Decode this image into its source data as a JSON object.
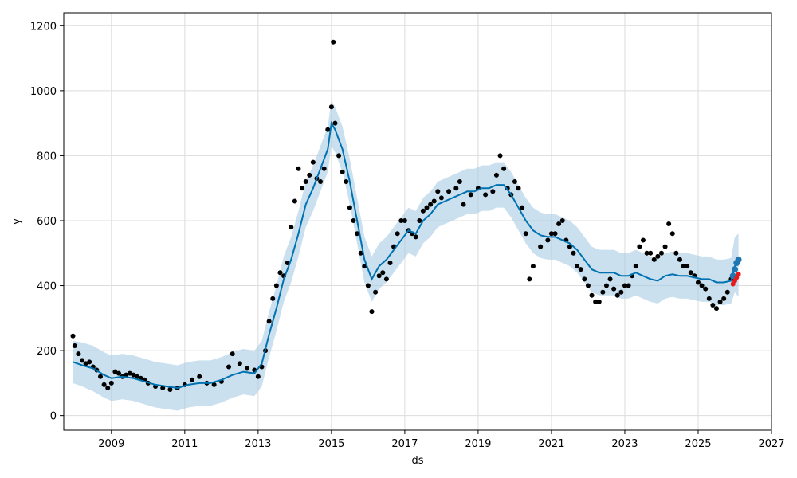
{
  "chart_data": {
    "type": "line",
    "title": "",
    "xlabel": "ds",
    "ylabel": "y",
    "xlim": [
      2007.7,
      2027.0
    ],
    "ylim": [
      -45,
      1240
    ],
    "x_ticks": [
      2009,
      2011,
      2013,
      2015,
      2017,
      2019,
      2021,
      2023,
      2025,
      2027
    ],
    "x_tick_labels": [
      "2009",
      "2011",
      "2013",
      "2015",
      "2017",
      "2019",
      "2021",
      "2023",
      "2025",
      "2027"
    ],
    "y_ticks": [
      0,
      200,
      400,
      600,
      800,
      1000,
      1200
    ],
    "y_tick_labels": [
      "0",
      "200",
      "400",
      "600",
      "800",
      "1000",
      "1200"
    ],
    "grid": true,
    "colors": {
      "observed": "#000000",
      "forecast_line": "#0072B2",
      "uncertainty_band": "#a6cbe3",
      "future_points": "#1f77b4",
      "future_actual": "#e41a1c"
    },
    "series": [
      {
        "name": "",
        "kind": "observed-points",
        "x": [
          2007.95,
          2008.0,
          2008.1,
          2008.2,
          2008.3,
          2008.4,
          2008.5,
          2008.6,
          2008.7,
          2008.8,
          2008.9,
          2009.0,
          2009.1,
          2009.2,
          2009.3,
          2009.4,
          2009.5,
          2009.6,
          2009.7,
          2009.8,
          2009.9,
          2010.0,
          2010.2,
          2010.4,
          2010.6,
          2010.8,
          2011.0,
          2011.2,
          2011.4,
          2011.6,
          2011.8,
          2012.0,
          2012.2,
          2012.3,
          2012.5,
          2012.7,
          2012.9,
          2013.0,
          2013.1,
          2013.2,
          2013.3,
          2013.4,
          2013.5,
          2013.6,
          2013.7,
          2013.8,
          2013.9,
          2014.0,
          2014.1,
          2014.2,
          2014.3,
          2014.4,
          2014.5,
          2014.6,
          2014.7,
          2014.8,
          2014.9,
          2015.0,
          2015.05,
          2015.1,
          2015.2,
          2015.3,
          2015.4,
          2015.5,
          2015.6,
          2015.7,
          2015.8,
          2015.9,
          2016.0,
          2016.1,
          2016.2,
          2016.3,
          2016.4,
          2016.5,
          2016.6,
          2016.7,
          2016.8,
          2016.9,
          2017.0,
          2017.1,
          2017.2,
          2017.3,
          2017.4,
          2017.5,
          2017.6,
          2017.7,
          2017.8,
          2017.9,
          2018.0,
          2018.2,
          2018.4,
          2018.5,
          2018.6,
          2018.8,
          2019.0,
          2019.2,
          2019.4,
          2019.5,
          2019.6,
          2019.7,
          2019.8,
          2019.9,
          2020.0,
          2020.1,
          2020.2,
          2020.3,
          2020.4,
          2020.5,
          2020.7,
          2020.9,
          2021.0,
          2021.1,
          2021.2,
          2021.3,
          2021.4,
          2021.5,
          2021.6,
          2021.7,
          2021.8,
          2021.9,
          2022.0,
          2022.1,
          2022.2,
          2022.3,
          2022.4,
          2022.5,
          2022.6,
          2022.7,
          2022.8,
          2022.9,
          2023.0,
          2023.1,
          2023.2,
          2023.3,
          2023.4,
          2023.5,
          2023.6,
          2023.7,
          2023.8,
          2023.9,
          2024.0,
          2024.1,
          2024.2,
          2024.3,
          2024.4,
          2024.5,
          2024.6,
          2024.7,
          2024.8,
          2024.9,
          2025.0,
          2025.1,
          2025.2,
          2025.3,
          2025.4,
          2025.5,
          2025.6,
          2025.7,
          2025.8,
          2025.9
        ],
        "y": [
          245,
          215,
          190,
          170,
          160,
          165,
          150,
          140,
          120,
          95,
          85,
          100,
          135,
          130,
          120,
          125,
          130,
          125,
          120,
          115,
          110,
          100,
          90,
          85,
          80,
          85,
          95,
          110,
          120,
          100,
          95,
          105,
          150,
          190,
          160,
          145,
          140,
          120,
          150,
          200,
          290,
          360,
          400,
          440,
          430,
          470,
          580,
          660,
          760,
          700,
          720,
          740,
          780,
          730,
          720,
          760,
          880,
          950,
          1150,
          900,
          800,
          750,
          720,
          640,
          600,
          560,
          500,
          460,
          400,
          320,
          380,
          430,
          440,
          420,
          470,
          520,
          560,
          600,
          600,
          570,
          560,
          550,
          600,
          630,
          640,
          650,
          660,
          690,
          670,
          690,
          700,
          720,
          650,
          680,
          700,
          680,
          690,
          740,
          800,
          760,
          700,
          680,
          720,
          700,
          640,
          560,
          420,
          460,
          520,
          540,
          560,
          560,
          590,
          600,
          540,
          520,
          500,
          460,
          450,
          420,
          400,
          370,
          350,
          350,
          380,
          400,
          420,
          390,
          370,
          380,
          400,
          400,
          430,
          460,
          520,
          540,
          500,
          500,
          480,
          490,
          500,
          520,
          590,
          560,
          500,
          480,
          460,
          460,
          440,
          430,
          410,
          400,
          390,
          360,
          340,
          330,
          350,
          360,
          380,
          420
        ]
      },
      {
        "name": "",
        "kind": "forecast-line",
        "x": [
          2007.95,
          2008.2,
          2008.5,
          2008.8,
          2009.0,
          2009.3,
          2009.6,
          2009.9,
          2010.2,
          2010.5,
          2010.8,
          2011.1,
          2011.4,
          2011.7,
          2012.0,
          2012.3,
          2012.6,
          2012.9,
          2013.1,
          2013.3,
          2013.5,
          2013.7,
          2013.9,
          2014.1,
          2014.3,
          2014.5,
          2014.7,
          2014.9,
          2015.0,
          2015.1,
          2015.3,
          2015.5,
          2015.7,
          2015.9,
          2016.1,
          2016.3,
          2016.5,
          2016.7,
          2016.9,
          2017.1,
          2017.3,
          2017.5,
          2017.7,
          2017.9,
          2018.1,
          2018.3,
          2018.5,
          2018.7,
          2018.9,
          2019.1,
          2019.3,
          2019.5,
          2019.7,
          2019.9,
          2020.1,
          2020.3,
          2020.5,
          2020.7,
          2020.9,
          2021.1,
          2021.3,
          2021.5,
          2021.7,
          2021.9,
          2022.1,
          2022.3,
          2022.5,
          2022.7,
          2022.9,
          2023.1,
          2023.3,
          2023.5,
          2023.7,
          2023.9,
          2024.1,
          2024.3,
          2024.5,
          2024.7,
          2024.9,
          2025.1,
          2025.3,
          2025.5,
          2025.7,
          2025.9,
          2026.0,
          2026.1
        ],
        "y": [
          165,
          155,
          145,
          125,
          115,
          120,
          115,
          105,
          95,
          90,
          85,
          95,
          100,
          100,
          110,
          125,
          135,
          130,
          160,
          250,
          330,
          420,
          480,
          560,
          650,
          700,
          760,
          820,
          900,
          880,
          820,
          720,
          600,
          480,
          420,
          460,
          480,
          510,
          540,
          570,
          560,
          600,
          620,
          650,
          660,
          670,
          680,
          690,
          690,
          700,
          700,
          710,
          710,
          680,
          640,
          600,
          570,
          555,
          550,
          550,
          540,
          530,
          510,
          480,
          450,
          440,
          440,
          440,
          430,
          430,
          440,
          430,
          420,
          415,
          430,
          435,
          430,
          430,
          425,
          420,
          420,
          410,
          410,
          415,
          460,
          480
        ]
      },
      {
        "name": "",
        "kind": "uncertainty-band",
        "x": [
          2007.95,
          2008.2,
          2008.5,
          2008.8,
          2009.0,
          2009.3,
          2009.6,
          2009.9,
          2010.2,
          2010.5,
          2010.8,
          2011.1,
          2011.4,
          2011.7,
          2012.0,
          2012.3,
          2012.6,
          2012.9,
          2013.1,
          2013.3,
          2013.5,
          2013.7,
          2013.9,
          2014.1,
          2014.3,
          2014.5,
          2014.7,
          2014.9,
          2015.0,
          2015.1,
          2015.3,
          2015.5,
          2015.7,
          2015.9,
          2016.1,
          2016.3,
          2016.5,
          2016.7,
          2016.9,
          2017.1,
          2017.3,
          2017.5,
          2017.7,
          2017.9,
          2018.1,
          2018.3,
          2018.5,
          2018.7,
          2018.9,
          2019.1,
          2019.3,
          2019.5,
          2019.7,
          2019.9,
          2020.1,
          2020.3,
          2020.5,
          2020.7,
          2020.9,
          2021.1,
          2021.3,
          2021.5,
          2021.7,
          2021.9,
          2022.1,
          2022.3,
          2022.5,
          2022.7,
          2022.9,
          2023.1,
          2023.3,
          2023.5,
          2023.7,
          2023.9,
          2024.1,
          2024.3,
          2024.5,
          2024.7,
          2024.9,
          2025.1,
          2025.3,
          2025.5,
          2025.7,
          2025.9,
          2026.0,
          2026.1
        ],
        "lower": [
          100,
          90,
          75,
          55,
          45,
          50,
          45,
          35,
          25,
          20,
          15,
          25,
          30,
          30,
          40,
          55,
          65,
          60,
          90,
          180,
          260,
          350,
          410,
          490,
          580,
          630,
          690,
          750,
          830,
          810,
          750,
          650,
          530,
          410,
          350,
          390,
          410,
          440,
          470,
          500,
          490,
          530,
          550,
          580,
          590,
          600,
          610,
          620,
          620,
          630,
          630,
          640,
          640,
          610,
          570,
          530,
          500,
          485,
          480,
          480,
          470,
          460,
          440,
          410,
          380,
          370,
          370,
          370,
          360,
          360,
          370,
          360,
          350,
          345,
          360,
          365,
          360,
          360,
          355,
          350,
          350,
          340,
          340,
          345,
          380,
          365
        ],
        "upper": [
          230,
          225,
          215,
          195,
          185,
          190,
          185,
          175,
          165,
          160,
          155,
          165,
          170,
          170,
          180,
          195,
          205,
          200,
          230,
          320,
          400,
          490,
          550,
          630,
          720,
          770,
          830,
          890,
          970,
          950,
          890,
          790,
          670,
          550,
          490,
          530,
          550,
          580,
          610,
          640,
          630,
          670,
          690,
          720,
          730,
          740,
          750,
          760,
          760,
          770,
          770,
          780,
          780,
          750,
          710,
          670,
          640,
          625,
          620,
          620,
          610,
          600,
          580,
          550,
          520,
          510,
          510,
          510,
          500,
          500,
          510,
          500,
          490,
          485,
          500,
          505,
          500,
          500,
          495,
          490,
          490,
          480,
          480,
          485,
          550,
          560
        ]
      },
      {
        "name": "",
        "kind": "future-forecast-points",
        "x": [
          2025.95,
          2026.0,
          2026.05,
          2026.1
        ],
        "y": [
          430,
          450,
          470,
          480
        ]
      },
      {
        "name": "",
        "kind": "future-actual-points",
        "x": [
          2025.95,
          2026.0,
          2026.05,
          2026.1
        ],
        "y": [
          405,
          415,
          425,
          435
        ]
      }
    ]
  }
}
